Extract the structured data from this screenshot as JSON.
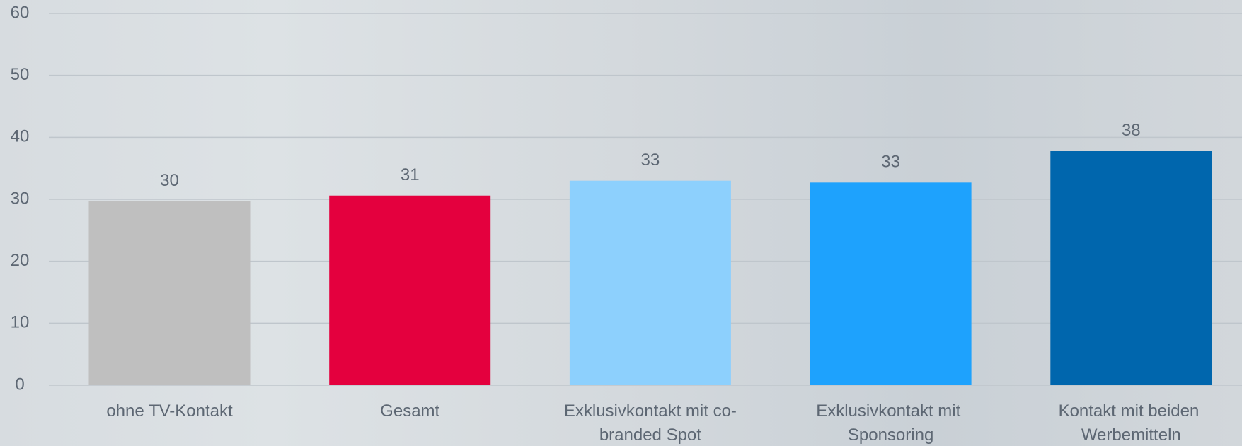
{
  "chart_data": {
    "type": "bar",
    "categories": [
      "ohne TV-Kontakt",
      "Gesamt",
      "Exklusivkontakt mit co-branded Spot",
      "Exklusivkontakt mit Sponsoring",
      "Kontakt mit beiden Werbemitteln"
    ],
    "values": [
      29.7,
      30.6,
      33.0,
      32.7,
      37.8
    ],
    "value_labels": [
      "30",
      "31",
      "33",
      "33",
      "38"
    ],
    "colors": [
      "#bfbfbf",
      "#e4003e",
      "#8dd0fd",
      "#1ea2fd",
      "#0066ad"
    ],
    "ylim": [
      0,
      60
    ],
    "yticks": [
      0,
      10,
      20,
      30,
      40,
      50,
      60
    ],
    "grid": true
  }
}
